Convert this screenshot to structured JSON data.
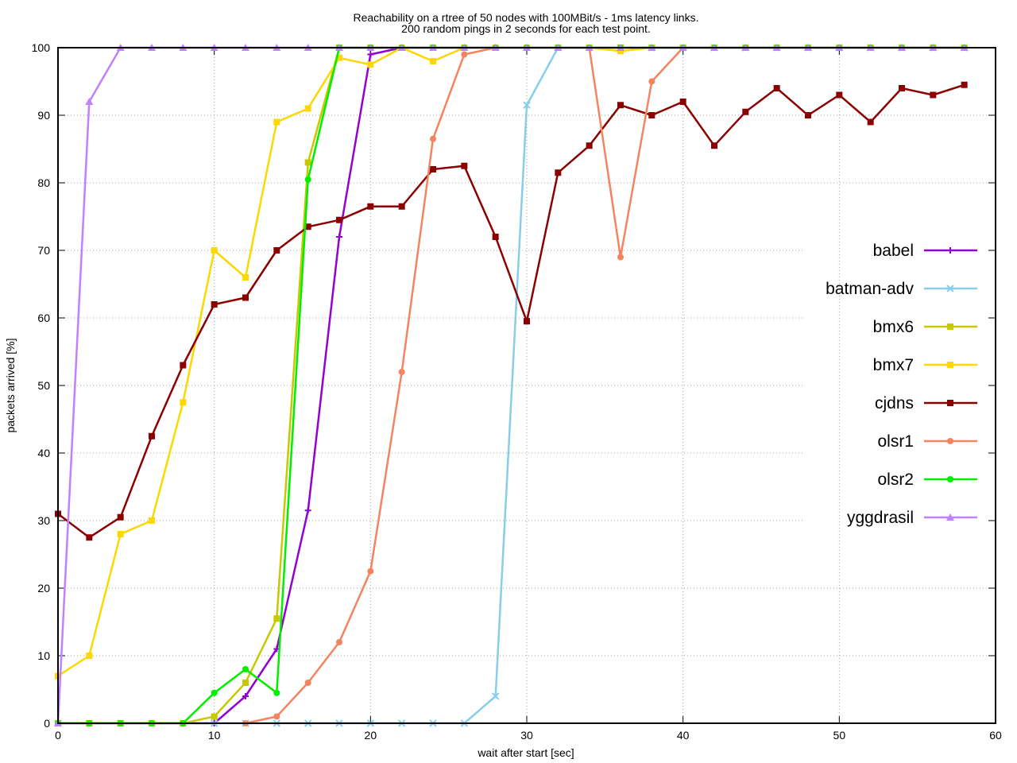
{
  "chart_data": {
    "type": "line",
    "title": "Reachability on a rtree of 50 nodes with 100MBit/s - 1ms latency links.",
    "subtitle": "200 random pings in 2 seconds for each test point.",
    "xlabel": "wait after start [sec]",
    "ylabel": "packets arrived [%]",
    "xlim": [
      0,
      60
    ],
    "ylim": [
      0,
      100
    ],
    "xticks": [
      0,
      10,
      20,
      30,
      40,
      50,
      60
    ],
    "yticks": [
      0,
      10,
      20,
      30,
      40,
      50,
      60,
      70,
      80,
      90,
      100
    ],
    "grid": true,
    "legend_position": "right",
    "series": [
      {
        "name": "babel",
        "color": "#9400d3",
        "marker": "plus",
        "points": [
          [
            0,
            0
          ],
          [
            2,
            0
          ],
          [
            4,
            0
          ],
          [
            6,
            0
          ],
          [
            8,
            0
          ],
          [
            10,
            0
          ],
          [
            12,
            4
          ],
          [
            14,
            11
          ],
          [
            16,
            31.5
          ],
          [
            18,
            72
          ],
          [
            20,
            99
          ],
          [
            22,
            100
          ],
          [
            24,
            100
          ],
          [
            26,
            100
          ],
          [
            28,
            100
          ],
          [
            30,
            100
          ],
          [
            32,
            100
          ],
          [
            34,
            100
          ],
          [
            36,
            100
          ],
          [
            38,
            100
          ],
          [
            40,
            100
          ],
          [
            42,
            100
          ],
          [
            44,
            100
          ],
          [
            46,
            100
          ],
          [
            48,
            100
          ],
          [
            50,
            100
          ],
          [
            52,
            100
          ],
          [
            54,
            100
          ],
          [
            56,
            100
          ],
          [
            58,
            100
          ]
        ]
      },
      {
        "name": "batman-adv",
        "color": "#87ceeb",
        "marker": "x",
        "points": [
          [
            0,
            0
          ],
          [
            2,
            0
          ],
          [
            4,
            0
          ],
          [
            6,
            0
          ],
          [
            8,
            0
          ],
          [
            10,
            0
          ],
          [
            12,
            0
          ],
          [
            14,
            0
          ],
          [
            16,
            0
          ],
          [
            18,
            0
          ],
          [
            20,
            0
          ],
          [
            22,
            0
          ],
          [
            24,
            0
          ],
          [
            26,
            0
          ],
          [
            28,
            4
          ],
          [
            30,
            91.5
          ],
          [
            32,
            100
          ],
          [
            34,
            100
          ],
          [
            36,
            100
          ],
          [
            38,
            100
          ],
          [
            40,
            100
          ],
          [
            42,
            100
          ],
          [
            44,
            100
          ],
          [
            46,
            100
          ],
          [
            48,
            100
          ],
          [
            50,
            100
          ],
          [
            52,
            100
          ],
          [
            54,
            100
          ],
          [
            56,
            100
          ],
          [
            58,
            100
          ]
        ]
      },
      {
        "name": "bmx6",
        "color": "#c8c800",
        "marker": "square",
        "points": [
          [
            0,
            0
          ],
          [
            2,
            0
          ],
          [
            4,
            0
          ],
          [
            6,
            0
          ],
          [
            8,
            0
          ],
          [
            10,
            1
          ],
          [
            12,
            6
          ],
          [
            14,
            15.5
          ],
          [
            16,
            83
          ],
          [
            18,
            100
          ],
          [
            20,
            100
          ],
          [
            22,
            100
          ],
          [
            24,
            100
          ],
          [
            26,
            100
          ],
          [
            28,
            100
          ],
          [
            30,
            100
          ],
          [
            32,
            100
          ],
          [
            34,
            100
          ],
          [
            36,
            100
          ],
          [
            38,
            100
          ],
          [
            40,
            100
          ],
          [
            42,
            100
          ],
          [
            44,
            100
          ],
          [
            46,
            100
          ],
          [
            48,
            100
          ],
          [
            50,
            100
          ],
          [
            52,
            100
          ],
          [
            54,
            100
          ],
          [
            56,
            100
          ],
          [
            58,
            100
          ]
        ]
      },
      {
        "name": "bmx7",
        "color": "#ffd700",
        "marker": "square",
        "points": [
          [
            0,
            7
          ],
          [
            2,
            10
          ],
          [
            4,
            28
          ],
          [
            6,
            30
          ],
          [
            8,
            47.5
          ],
          [
            10,
            70
          ],
          [
            12,
            66
          ],
          [
            14,
            89
          ],
          [
            16,
            91
          ],
          [
            18,
            98.5
          ],
          [
            20,
            97.5
          ],
          [
            22,
            100
          ],
          [
            24,
            98
          ],
          [
            26,
            100
          ],
          [
            28,
            100
          ],
          [
            30,
            100
          ],
          [
            32,
            100
          ],
          [
            34,
            100
          ],
          [
            36,
            99.5
          ],
          [
            38,
            100
          ],
          [
            40,
            100
          ],
          [
            42,
            100
          ],
          [
            44,
            100
          ],
          [
            46,
            100
          ],
          [
            48,
            100
          ],
          [
            50,
            100
          ],
          [
            52,
            100
          ],
          [
            54,
            100
          ],
          [
            56,
            100
          ],
          [
            58,
            100
          ]
        ]
      },
      {
        "name": "cjdns",
        "color": "#8b0000",
        "marker": "square",
        "points": [
          [
            0,
            31
          ],
          [
            2,
            27.5
          ],
          [
            4,
            30.5
          ],
          [
            6,
            42.5
          ],
          [
            8,
            53
          ],
          [
            10,
            62
          ],
          [
            12,
            63
          ],
          [
            14,
            70
          ],
          [
            16,
            73.5
          ],
          [
            18,
            74.5
          ],
          [
            20,
            76.5
          ],
          [
            22,
            76.5
          ],
          [
            24,
            82
          ],
          [
            26,
            82.5
          ],
          [
            28,
            72
          ],
          [
            30,
            59.5
          ],
          [
            32,
            81.5
          ],
          [
            34,
            85.5
          ],
          [
            36,
            91.5
          ],
          [
            38,
            90
          ],
          [
            40,
            92
          ],
          [
            42,
            85.5
          ],
          [
            44,
            90.5
          ],
          [
            46,
            94
          ],
          [
            48,
            90
          ],
          [
            50,
            93
          ],
          [
            52,
            89
          ],
          [
            54,
            94
          ],
          [
            56,
            93
          ],
          [
            58,
            94.5
          ]
        ]
      },
      {
        "name": "olsr1",
        "color": "#f4845f",
        "marker": "circle",
        "points": [
          [
            12,
            0
          ],
          [
            14,
            1
          ],
          [
            16,
            6
          ],
          [
            18,
            12
          ],
          [
            20,
            22.5
          ],
          [
            22,
            52
          ],
          [
            24,
            86.5
          ],
          [
            26,
            99
          ],
          [
            28,
            100
          ],
          [
            30,
            100
          ],
          [
            32,
            100
          ],
          [
            34,
            100
          ],
          [
            36,
            69
          ],
          [
            38,
            95
          ],
          [
            40,
            100
          ],
          [
            42,
            100
          ],
          [
            44,
            100
          ],
          [
            46,
            100
          ],
          [
            48,
            100
          ],
          [
            50,
            100
          ],
          [
            52,
            100
          ],
          [
            54,
            100
          ],
          [
            56,
            100
          ],
          [
            58,
            100
          ]
        ]
      },
      {
        "name": "olsr2",
        "color": "#00ee00",
        "marker": "circle",
        "points": [
          [
            0,
            0
          ],
          [
            2,
            0
          ],
          [
            4,
            0
          ],
          [
            6,
            0
          ],
          [
            8,
            0
          ],
          [
            10,
            4.5
          ],
          [
            12,
            8
          ],
          [
            14,
            4.5
          ],
          [
            16,
            80.5
          ],
          [
            18,
            100
          ],
          [
            20,
            100
          ],
          [
            22,
            100
          ],
          [
            24,
            100
          ],
          [
            26,
            100
          ],
          [
            28,
            100
          ],
          [
            30,
            100
          ],
          [
            32,
            100
          ],
          [
            34,
            100
          ],
          [
            36,
            100
          ],
          [
            38,
            100
          ],
          [
            40,
            100
          ],
          [
            42,
            100
          ],
          [
            44,
            100
          ],
          [
            46,
            100
          ],
          [
            48,
            100
          ],
          [
            50,
            100
          ],
          [
            52,
            100
          ],
          [
            54,
            100
          ],
          [
            56,
            100
          ],
          [
            58,
            100
          ]
        ]
      },
      {
        "name": "yggdrasil",
        "color": "#c080ff",
        "marker": "triangle",
        "points": [
          [
            0,
            0
          ],
          [
            2,
            92
          ],
          [
            4,
            100
          ],
          [
            6,
            100
          ],
          [
            8,
            100
          ],
          [
            10,
            100
          ],
          [
            12,
            100
          ],
          [
            14,
            100
          ],
          [
            16,
            100
          ],
          [
            18,
            100
          ],
          [
            20,
            100
          ],
          [
            22,
            100
          ],
          [
            24,
            100
          ],
          [
            26,
            100
          ],
          [
            28,
            100
          ],
          [
            30,
            100
          ],
          [
            32,
            100
          ],
          [
            34,
            100
          ],
          [
            36,
            100
          ],
          [
            38,
            100
          ],
          [
            40,
            100
          ],
          [
            42,
            100
          ],
          [
            44,
            100
          ],
          [
            46,
            100
          ],
          [
            48,
            100
          ],
          [
            50,
            100
          ],
          [
            52,
            100
          ],
          [
            54,
            100
          ],
          [
            56,
            100
          ],
          [
            58,
            100
          ]
        ]
      }
    ]
  }
}
